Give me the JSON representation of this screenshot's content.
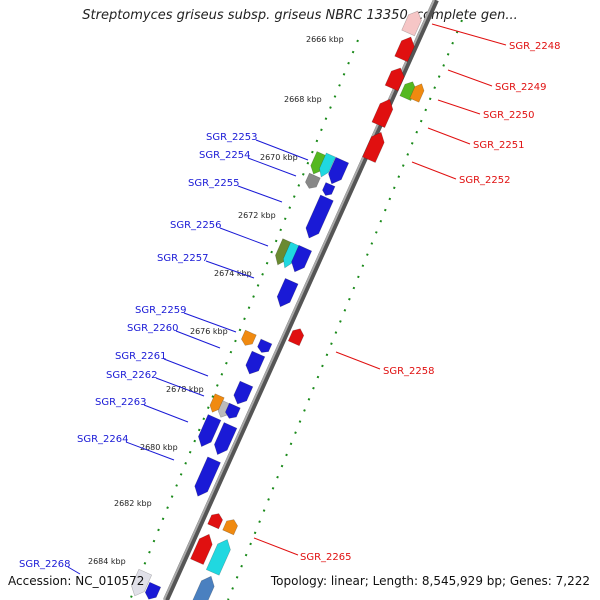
{
  "title": "Streptomyces griseus subsp. griseus NBRC 13350, complete gen...",
  "footer": {
    "accession": "Accession: NC_010572",
    "summary": "Topology: linear; Length: 8,545,929 bp; Genes: 7,222"
  },
  "colors": {
    "forward_strand": "#e01010",
    "reverse_strand": "#1a1ad6",
    "backbone": "#7a7a7a",
    "ticks": "#1a8a1a",
    "orange": "#f08a10",
    "cyan": "#20d8e0",
    "green": "#55b820",
    "gray": "#888888"
  },
  "kbp_markers": [
    "2666 kbp",
    "2668 kbp",
    "2670 kbp",
    "2672 kbp",
    "2674 kbp",
    "2676 kbp",
    "2678 kbp",
    "2680 kbp",
    "2682 kbp",
    "2684 kbp"
  ],
  "genes_right": [
    "SGR_2248",
    "SGR_2249",
    "SGR_2250",
    "SGR_2251",
    "SGR_2252",
    "SGR_2258",
    "SGR_2265"
  ],
  "genes_left": [
    "SGR_2253",
    "SGR_2254",
    "SGR_2255",
    "SGR_2256",
    "SGR_2257",
    "SGR_2259",
    "SGR_2260",
    "SGR_2261",
    "SGR_2262",
    "SGR_2263",
    "SGR_2264",
    "SGR_2268"
  ]
}
